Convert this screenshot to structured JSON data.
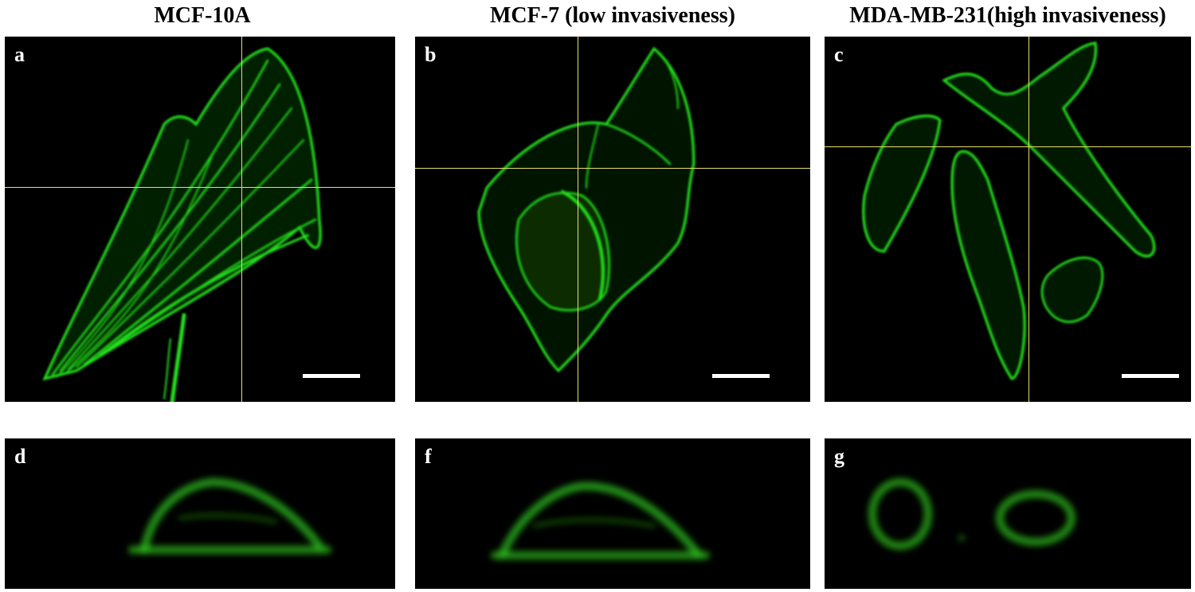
{
  "columns": [
    {
      "title": "MCF-10A"
    },
    {
      "title": "MCF-7 (low invasiveness)"
    },
    {
      "title": "MDA-MB-231(high invasiveness)"
    }
  ],
  "panels": {
    "a": {
      "letter": "a"
    },
    "b": {
      "letter": "b"
    },
    "c": {
      "letter": "c"
    },
    "d": {
      "letter": "d"
    },
    "f": {
      "letter": "f"
    },
    "g": {
      "letter": "g"
    }
  },
  "colors": {
    "stain": "#22e01a",
    "crosshair": "#e6e06a",
    "background": "#000000"
  }
}
